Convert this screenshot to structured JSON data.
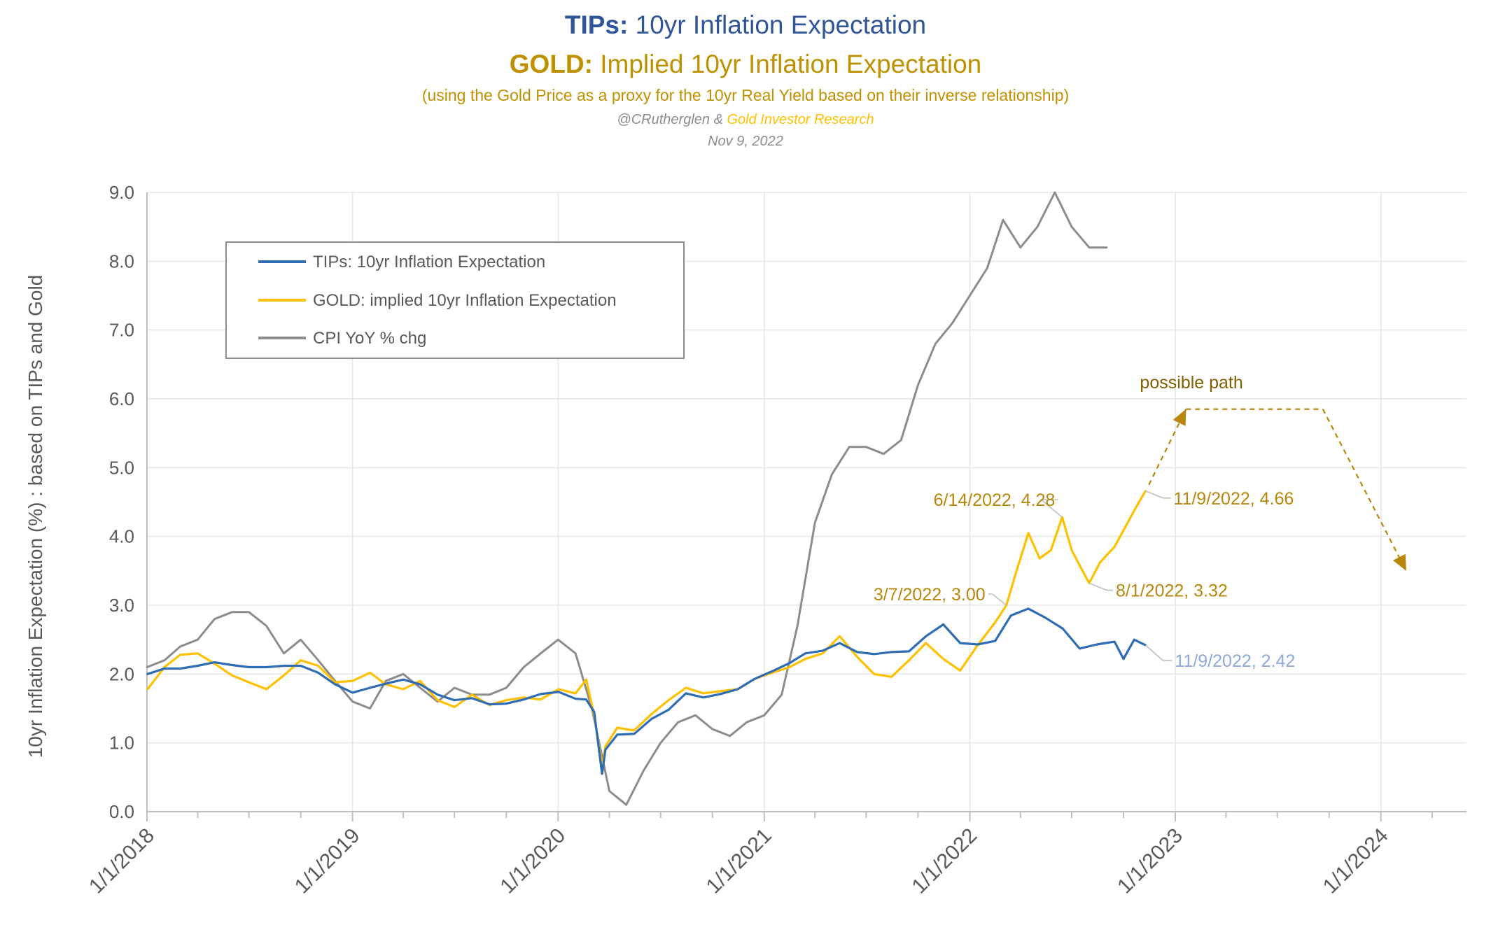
{
  "header": {
    "title1_bold": "TIPs:",
    "title1_rest": " 10yr Inflation Expectation",
    "title2_bold": "GOLD:",
    "title2_rest": " Implied 10yr Inflation Expectation",
    "subtitle": "(using the Gold Price as a proxy for the 10yr Real Yield based on their inverse relationship)",
    "credit_a": "@CRutherglen & ",
    "credit_b": "Gold Investor Research",
    "date": "Nov 9, 2022"
  },
  "colors": {
    "tips": "#2E6DB4",
    "gold": "#FFC000",
    "cpi": "#8C8C8C",
    "title_blue": "#2F5597",
    "title_gold": "#BF9000",
    "annotation_gold": "#B8860B",
    "annotation_blue": "#8EA9DB",
    "grid": "#E6E6E6",
    "axis_text": "#595959"
  },
  "chart_data": {
    "type": "line",
    "ylabel": "10yr Inflation Expectation (%) : based on TIPs and Gold",
    "xlabel": "",
    "ylim": [
      0,
      9
    ],
    "xlim": [
      "2018-01-01",
      "2024-06-01"
    ],
    "y_ticks": [
      "0.0",
      "1.0",
      "2.0",
      "3.0",
      "4.0",
      "5.0",
      "6.0",
      "7.0",
      "8.0",
      "9.0"
    ],
    "x_ticks": [
      {
        "date": "2018-01-01",
        "label": "1/1/2018"
      },
      {
        "date": "2019-01-01",
        "label": "1/1/2019"
      },
      {
        "date": "2020-01-01",
        "label": "1/1/2020"
      },
      {
        "date": "2021-01-01",
        "label": "1/1/2021"
      },
      {
        "date": "2022-01-01",
        "label": "1/1/2022"
      },
      {
        "date": "2023-01-01",
        "label": "1/1/2023"
      },
      {
        "date": "2024-01-01",
        "label": "1/1/2024"
      }
    ],
    "grid": true,
    "legend_position": "top-left",
    "series": [
      {
        "name": "TIPs: 10yr Inflation Expectation",
        "key": "tips",
        "points": [
          [
            "2018-01-02",
            2.0
          ],
          [
            "2018-02-01",
            2.08
          ],
          [
            "2018-03-01",
            2.08
          ],
          [
            "2018-04-01",
            2.12
          ],
          [
            "2018-05-01",
            2.17
          ],
          [
            "2018-06-01",
            2.13
          ],
          [
            "2018-07-01",
            2.1
          ],
          [
            "2018-08-01",
            2.1
          ],
          [
            "2018-09-01",
            2.12
          ],
          [
            "2018-10-01",
            2.12
          ],
          [
            "2018-11-01",
            2.02
          ],
          [
            "2018-12-01",
            1.85
          ],
          [
            "2019-01-01",
            1.73
          ],
          [
            "2019-02-01",
            1.8
          ],
          [
            "2019-03-01",
            1.86
          ],
          [
            "2019-04-01",
            1.92
          ],
          [
            "2019-05-01",
            1.85
          ],
          [
            "2019-06-01",
            1.7
          ],
          [
            "2019-07-01",
            1.62
          ],
          [
            "2019-08-01",
            1.65
          ],
          [
            "2019-09-01",
            1.56
          ],
          [
            "2019-10-01",
            1.57
          ],
          [
            "2019-11-01",
            1.63
          ],
          [
            "2019-12-01",
            1.71
          ],
          [
            "2020-01-02",
            1.74
          ],
          [
            "2020-02-01",
            1.64
          ],
          [
            "2020-02-20",
            1.63
          ],
          [
            "2020-03-05",
            1.45
          ],
          [
            "2020-03-19",
            0.55
          ],
          [
            "2020-03-25",
            0.9
          ],
          [
            "2020-04-15",
            1.12
          ],
          [
            "2020-05-15",
            1.13
          ],
          [
            "2020-06-15",
            1.35
          ],
          [
            "2020-07-15",
            1.48
          ],
          [
            "2020-08-15",
            1.72
          ],
          [
            "2020-09-15",
            1.66
          ],
          [
            "2020-10-15",
            1.71
          ],
          [
            "2020-11-15",
            1.78
          ],
          [
            "2020-12-15",
            1.93
          ],
          [
            "2021-01-15",
            2.04
          ],
          [
            "2021-02-15",
            2.16
          ],
          [
            "2021-03-15",
            2.3
          ],
          [
            "2021-04-15",
            2.34
          ],
          [
            "2021-05-15",
            2.45
          ],
          [
            "2021-06-15",
            2.32
          ],
          [
            "2021-07-15",
            2.29
          ],
          [
            "2021-08-15",
            2.32
          ],
          [
            "2021-09-15",
            2.33
          ],
          [
            "2021-10-15",
            2.55
          ],
          [
            "2021-11-15",
            2.72
          ],
          [
            "2021-12-15",
            2.45
          ],
          [
            "2022-01-15",
            2.43
          ],
          [
            "2022-02-15",
            2.48
          ],
          [
            "2022-03-15",
            2.85
          ],
          [
            "2022-04-15",
            2.95
          ],
          [
            "2022-05-15",
            2.82
          ],
          [
            "2022-06-15",
            2.66
          ],
          [
            "2022-07-15",
            2.37
          ],
          [
            "2022-08-15",
            2.43
          ],
          [
            "2022-09-15",
            2.47
          ],
          [
            "2022-10-01",
            2.22
          ],
          [
            "2022-10-20",
            2.5
          ],
          [
            "2022-11-09",
            2.42
          ]
        ]
      },
      {
        "name": "GOLD: implied 10yr Inflation Expectation",
        "key": "gold",
        "points": [
          [
            "2018-01-02",
            1.78
          ],
          [
            "2018-02-01",
            2.1
          ],
          [
            "2018-03-01",
            2.28
          ],
          [
            "2018-04-01",
            2.3
          ],
          [
            "2018-05-01",
            2.15
          ],
          [
            "2018-06-01",
            1.98
          ],
          [
            "2018-07-01",
            1.88
          ],
          [
            "2018-08-01",
            1.78
          ],
          [
            "2018-09-01",
            1.98
          ],
          [
            "2018-10-01",
            2.2
          ],
          [
            "2018-11-01",
            2.12
          ],
          [
            "2018-12-01",
            1.88
          ],
          [
            "2019-01-01",
            1.9
          ],
          [
            "2019-02-01",
            2.02
          ],
          [
            "2019-03-01",
            1.85
          ],
          [
            "2019-04-01",
            1.78
          ],
          [
            "2019-05-01",
            1.9
          ],
          [
            "2019-06-01",
            1.62
          ],
          [
            "2019-07-01",
            1.52
          ],
          [
            "2019-08-01",
            1.7
          ],
          [
            "2019-09-01",
            1.55
          ],
          [
            "2019-10-01",
            1.62
          ],
          [
            "2019-11-01",
            1.66
          ],
          [
            "2019-12-01",
            1.63
          ],
          [
            "2020-01-02",
            1.78
          ],
          [
            "2020-02-01",
            1.72
          ],
          [
            "2020-02-20",
            1.92
          ],
          [
            "2020-03-05",
            1.4
          ],
          [
            "2020-03-19",
            0.65
          ],
          [
            "2020-03-25",
            0.95
          ],
          [
            "2020-04-15",
            1.22
          ],
          [
            "2020-05-15",
            1.18
          ],
          [
            "2020-06-15",
            1.42
          ],
          [
            "2020-07-15",
            1.62
          ],
          [
            "2020-08-15",
            1.8
          ],
          [
            "2020-09-15",
            1.72
          ],
          [
            "2020-10-15",
            1.75
          ],
          [
            "2020-11-15",
            1.78
          ],
          [
            "2020-12-15",
            1.93
          ],
          [
            "2021-01-15",
            2.02
          ],
          [
            "2021-02-15",
            2.1
          ],
          [
            "2021-03-15",
            2.22
          ],
          [
            "2021-04-15",
            2.3
          ],
          [
            "2021-05-15",
            2.55
          ],
          [
            "2021-06-15",
            2.25
          ],
          [
            "2021-07-15",
            2.0
          ],
          [
            "2021-08-15",
            1.96
          ],
          [
            "2021-09-15",
            2.2
          ],
          [
            "2021-10-15",
            2.45
          ],
          [
            "2021-11-15",
            2.22
          ],
          [
            "2021-12-15",
            2.05
          ],
          [
            "2022-01-15",
            2.42
          ],
          [
            "2022-02-15",
            2.75
          ],
          [
            "2022-03-07",
            3.0
          ],
          [
            "2022-03-25",
            3.5
          ],
          [
            "2022-04-15",
            4.05
          ],
          [
            "2022-05-05",
            3.68
          ],
          [
            "2022-05-25",
            3.8
          ],
          [
            "2022-06-14",
            4.28
          ],
          [
            "2022-07-01",
            3.8
          ],
          [
            "2022-07-15",
            3.58
          ],
          [
            "2022-08-01",
            3.32
          ],
          [
            "2022-08-20",
            3.62
          ],
          [
            "2022-09-15",
            3.85
          ],
          [
            "2022-10-05",
            4.15
          ],
          [
            "2022-10-25",
            4.45
          ],
          [
            "2022-11-09",
            4.66
          ]
        ]
      },
      {
        "name": "CPI YoY % chg",
        "key": "cpi",
        "points": [
          [
            "2018-01-01",
            2.1
          ],
          [
            "2018-02-01",
            2.2
          ],
          [
            "2018-03-01",
            2.4
          ],
          [
            "2018-04-01",
            2.5
          ],
          [
            "2018-05-01",
            2.8
          ],
          [
            "2018-06-01",
            2.9
          ],
          [
            "2018-07-01",
            2.9
          ],
          [
            "2018-08-01",
            2.7
          ],
          [
            "2018-09-01",
            2.3
          ],
          [
            "2018-10-01",
            2.5
          ],
          [
            "2018-11-01",
            2.2
          ],
          [
            "2018-12-01",
            1.9
          ],
          [
            "2019-01-01",
            1.6
          ],
          [
            "2019-02-01",
            1.5
          ],
          [
            "2019-03-01",
            1.9
          ],
          [
            "2019-04-01",
            2.0
          ],
          [
            "2019-05-01",
            1.8
          ],
          [
            "2019-06-01",
            1.6
          ],
          [
            "2019-07-01",
            1.8
          ],
          [
            "2019-08-01",
            1.7
          ],
          [
            "2019-09-01",
            1.7
          ],
          [
            "2019-10-01",
            1.8
          ],
          [
            "2019-11-01",
            2.1
          ],
          [
            "2019-12-01",
            2.3
          ],
          [
            "2020-01-01",
            2.5
          ],
          [
            "2020-02-01",
            2.3
          ],
          [
            "2020-03-01",
            1.5
          ],
          [
            "2020-04-01",
            0.3
          ],
          [
            "2020-05-01",
            0.1
          ],
          [
            "2020-06-01",
            0.6
          ],
          [
            "2020-07-01",
            1.0
          ],
          [
            "2020-08-01",
            1.3
          ],
          [
            "2020-09-01",
            1.4
          ],
          [
            "2020-10-01",
            1.2
          ],
          [
            "2020-11-01",
            1.1
          ],
          [
            "2020-12-01",
            1.3
          ],
          [
            "2021-01-01",
            1.4
          ],
          [
            "2021-02-01",
            1.7
          ],
          [
            "2021-03-01",
            2.7
          ],
          [
            "2021-04-01",
            4.2
          ],
          [
            "2021-05-01",
            4.9
          ],
          [
            "2021-06-01",
            5.3
          ],
          [
            "2021-07-01",
            5.3
          ],
          [
            "2021-08-01",
            5.2
          ],
          [
            "2021-09-01",
            5.4
          ],
          [
            "2021-10-01",
            6.2
          ],
          [
            "2021-11-01",
            6.8
          ],
          [
            "2021-12-01",
            7.1
          ],
          [
            "2022-01-01",
            7.5
          ],
          [
            "2022-02-01",
            7.9
          ],
          [
            "2022-03-01",
            8.6
          ],
          [
            "2022-04-01",
            8.2
          ],
          [
            "2022-05-01",
            8.5
          ],
          [
            "2022-06-01",
            9.0
          ],
          [
            "2022-07-01",
            8.5
          ],
          [
            "2022-08-01",
            8.2
          ],
          [
            "2022-09-01",
            8.2
          ]
        ]
      }
    ],
    "possible_path": {
      "label": "possible path",
      "points": [
        [
          "2022-11-15",
          4.75
        ],
        [
          "2023-01-20",
          5.85
        ],
        [
          "2023-09-20",
          5.85
        ],
        [
          "2024-02-15",
          3.5
        ]
      ]
    },
    "annotations": [
      {
        "key": "a1",
        "text": "6/14/2022, 4.28",
        "series": "gold",
        "color": "annotation_gold",
        "point": [
          "2022-06-14",
          4.28
        ]
      },
      {
        "key": "a2",
        "text": "3/7/2022, 3.00",
        "series": "gold",
        "color": "annotation_gold",
        "point": [
          "2022-03-07",
          3.0
        ]
      },
      {
        "key": "a3",
        "text": "11/9/2022, 4.66",
        "series": "gold",
        "color": "annotation_gold",
        "point": [
          "2022-11-09",
          4.66
        ]
      },
      {
        "key": "a4",
        "text": "8/1/2022, 3.32",
        "series": "gold",
        "color": "annotation_gold",
        "point": [
          "2022-08-01",
          3.32
        ]
      },
      {
        "key": "a5",
        "text": "11/9/2022, 2.42",
        "series": "tips",
        "color": "annotation_blue",
        "point": [
          "2022-11-09",
          2.42
        ]
      }
    ]
  }
}
